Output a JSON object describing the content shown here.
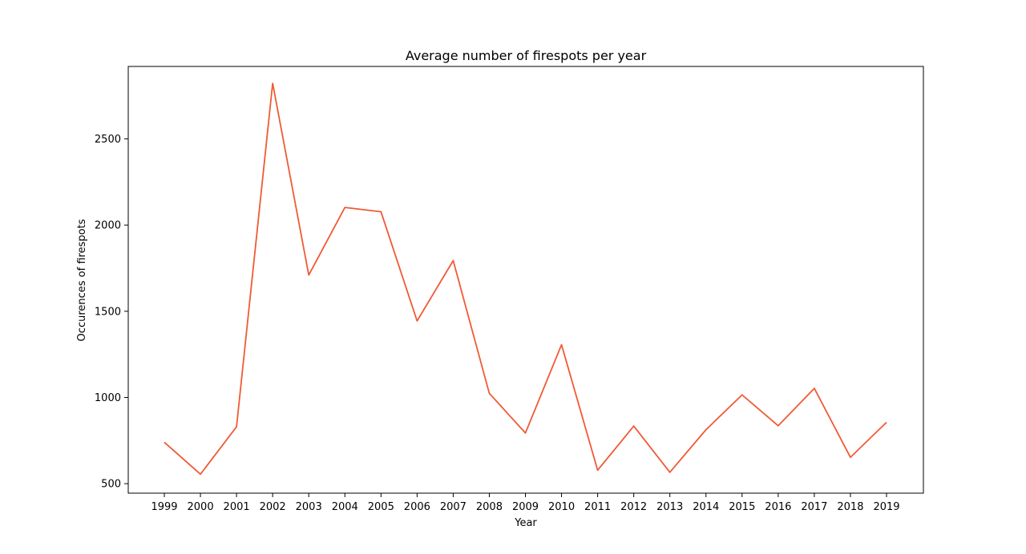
{
  "chart_data": {
    "type": "line",
    "title": "Average number of firespots per year",
    "xlabel": "Year",
    "ylabel": "Occurences of firespots",
    "x": [
      "1999",
      "2000",
      "2001",
      "2002",
      "2003",
      "2004",
      "2005",
      "2006",
      "2007",
      "2008",
      "2009",
      "2010",
      "2011",
      "2012",
      "2013",
      "2014",
      "2015",
      "2016",
      "2017",
      "2018",
      "2019"
    ],
    "series": [
      {
        "values": [
          740,
          555,
          830,
          2822,
          1710,
          2102,
          2077,
          1444,
          1794,
          1024,
          794,
          1306,
          578,
          834,
          566,
          813,
          1015,
          836,
          1053,
          653,
          856
        ],
        "color": "#f05a35"
      }
    ],
    "ylim": [
      445,
      2920
    ],
    "yticks": [
      500,
      1000,
      1500,
      2000,
      2500
    ],
    "grid": false,
    "legend": false
  }
}
